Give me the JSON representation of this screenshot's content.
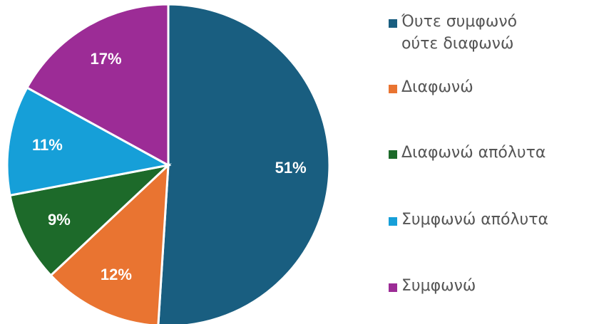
{
  "chart_data": {
    "type": "pie",
    "categories": [
      "Όυτε συμφωνό ούτε διαφωνώ",
      "Διαφωνώ",
      "Διαφωνώ απόλυτα",
      "Συμφωνώ απόλυτα",
      "Συμφωνώ"
    ],
    "values": [
      51,
      12,
      9,
      11,
      17
    ],
    "value_labels": [
      "51%",
      "12%",
      "9%",
      "11%",
      "17%"
    ],
    "colors": [
      "#195e80",
      "#e97431",
      "#1d6a2a",
      "#169fd8",
      "#9c2c96"
    ]
  }
}
